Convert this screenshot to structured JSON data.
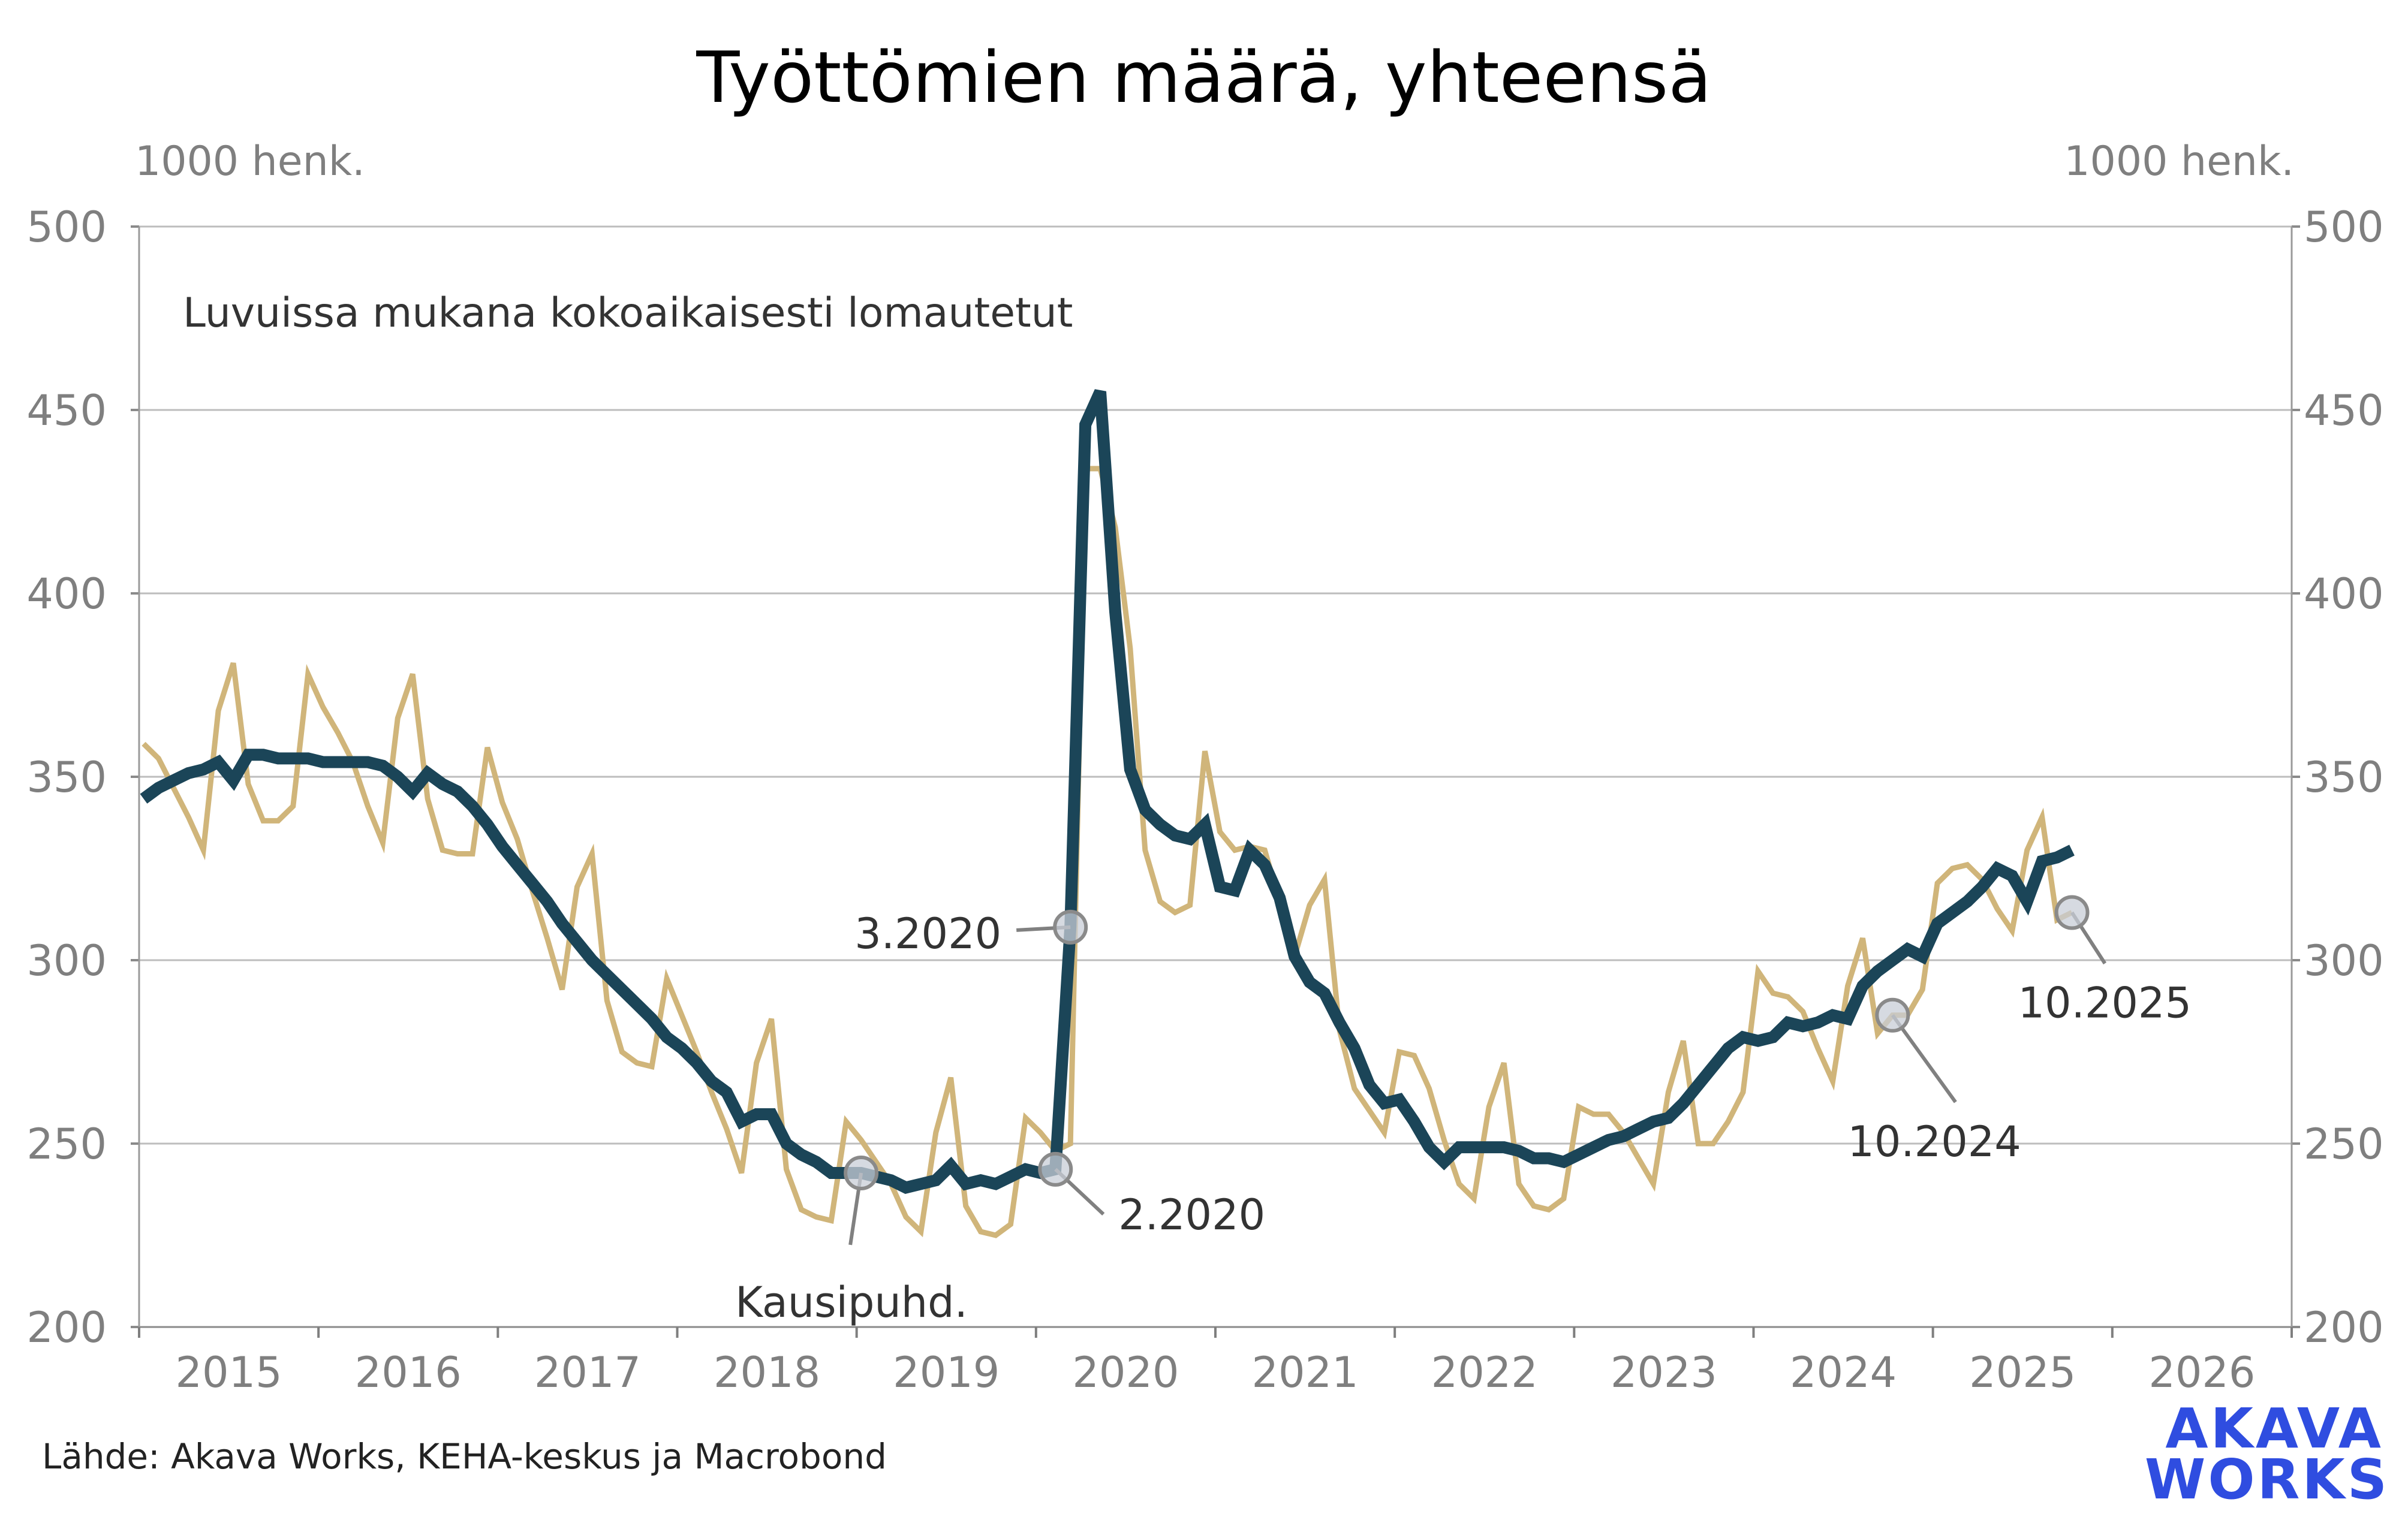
{
  "chart_data": {
    "type": "line",
    "title": "Työttömien määrä, yhteensä",
    "ylabel_left": "1000 henk.",
    "ylabel_right": "1000 henk.",
    "note": "Luvuissa mukana kokoaikaisesti lomautetut",
    "source": "Lähde: Akava Works, KEHA-keskus ja Macrobond",
    "logo": [
      "AKAVA",
      "WORKS"
    ],
    "ylim": [
      200,
      500
    ],
    "yticks": [
      200,
      250,
      300,
      350,
      400,
      450,
      500
    ],
    "xlim": [
      "2015-01",
      "2026-12"
    ],
    "xticks": [
      "2015",
      "2016",
      "2017",
      "2018",
      "2019",
      "2020",
      "2021",
      "2022",
      "2023",
      "2024",
      "2025",
      "2026"
    ],
    "grid": true,
    "start": "2015-01",
    "frequency": "monthly",
    "colors": {
      "trend": "#1b4558",
      "unadjusted": "#d0b57a",
      "grid": "#bdbdbd",
      "axis_text": "#7f7f7f",
      "logo": "#2f4de0"
    },
    "series": [
      {
        "key": "unadjusted",
        "values": [
          359,
          355,
          347,
          339,
          330,
          368,
          381,
          348,
          338,
          338,
          342,
          378,
          369,
          362,
          354,
          342,
          332,
          366,
          378,
          344,
          330,
          329,
          329,
          358,
          343,
          333,
          319,
          306,
          292,
          320,
          329,
          289,
          275,
          272,
          271,
          295,
          285,
          275,
          264,
          254,
          242,
          272,
          284,
          243,
          232,
          230,
          229,
          256,
          251,
          245,
          239,
          230,
          226,
          253,
          268,
          233,
          226,
          225,
          228,
          257,
          253,
          248,
          250,
          434,
          434,
          418,
          385,
          330,
          316,
          313,
          315,
          357,
          335,
          330,
          331,
          330,
          316,
          301,
          315,
          322,
          281,
          265,
          259,
          253,
          275,
          274,
          265,
          251,
          239,
          235,
          260,
          272,
          239,
          233,
          232,
          235,
          260,
          258,
          258,
          253,
          246,
          239,
          264,
          278,
          250,
          250,
          256,
          264,
          297,
          291,
          290,
          286,
          276,
          267,
          293,
          306,
          280,
          285,
          285,
          292,
          321,
          325,
          326,
          322,
          314,
          308,
          330,
          339,
          311,
          313
        ]
      },
      {
        "key": "trend",
        "label": "Kausipuhd.",
        "values": [
          344,
          347,
          349,
          351,
          352,
          354,
          349,
          356,
          356,
          355,
          355,
          355,
          354,
          354,
          354,
          354,
          353,
          350,
          346,
          351,
          348,
          346,
          342,
          337,
          331,
          326,
          321,
          316,
          310,
          305,
          300,
          296,
          292,
          288,
          284,
          279,
          276,
          272,
          267,
          264,
          256,
          258,
          258,
          250,
          247,
          245,
          242,
          242,
          242,
          241,
          240,
          238,
          239,
          240,
          244,
          239,
          240,
          239,
          241,
          243,
          242,
          243,
          309,
          446,
          455,
          395,
          352,
          341,
          337,
          334,
          333,
          337,
          320,
          319,
          330,
          326,
          317,
          301,
          294,
          291,
          283,
          276,
          266,
          261,
          262,
          256,
          249,
          245,
          249,
          249,
          249,
          249,
          248,
          246,
          246,
          245,
          247,
          249,
          251,
          252,
          254,
          256,
          257,
          261,
          266,
          271,
          276,
          279,
          278,
          279,
          283,
          282,
          283,
          285,
          284,
          293,
          297,
          300,
          303,
          301,
          310,
          313,
          316,
          320,
          325,
          323,
          316,
          327,
          328,
          330
        ]
      }
    ],
    "annotations": [
      {
        "label": "Kausipuhd.",
        "series": "trend",
        "month": "2019-01"
      },
      {
        "label": "3.2020",
        "series": "trend",
        "month": "2020-03"
      },
      {
        "label": "2.2020",
        "series": "trend",
        "month": "2020-02"
      },
      {
        "label": "10.2024",
        "series": "unadjusted",
        "month": "2024-10"
      },
      {
        "label": "10.2025",
        "series": "unadjusted",
        "month": "2025-10"
      }
    ]
  }
}
